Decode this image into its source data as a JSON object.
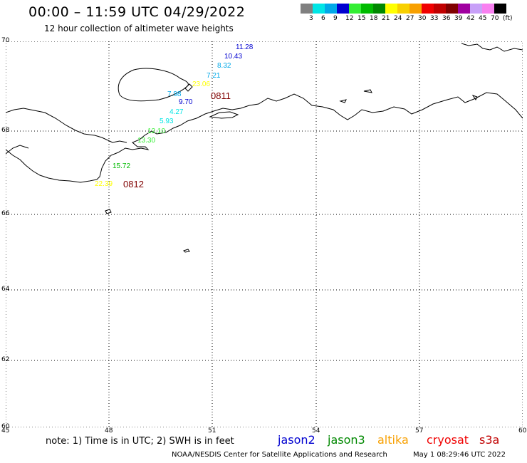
{
  "header": {
    "title": "00:00 – 11:59 UTC 04/29/2022",
    "subtitle": "12 hour collection of altimeter wave heights"
  },
  "scale": {
    "labels": [
      "3",
      "6",
      "9",
      "12",
      "15",
      "18",
      "21",
      "24",
      "27",
      "30",
      "33",
      "36",
      "39",
      "42",
      "45",
      "70",
      "(ft)"
    ],
    "colors": [
      "#808080",
      "#00e5e5",
      "#00a8e8",
      "#0000d0",
      "#33ee33",
      "#00bb00",
      "#008800",
      "#ffff00",
      "#f8d000",
      "#f8a000",
      "#f00000",
      "#c00000",
      "#800000",
      "#a000a0",
      "#c8a0f8",
      "#f880f0",
      "#000000"
    ]
  },
  "map": {
    "lat_labels": [
      "70",
      "68",
      "66",
      "64",
      "62",
      "60"
    ],
    "lon_labels": [
      "45",
      "48",
      "51",
      "54",
      "57",
      "60"
    ]
  },
  "tracks": [
    {
      "label": "0811",
      "color": "#800000",
      "points": [
        {
          "value": "11.28",
          "color": "#0000d0"
        },
        {
          "value": "10.43",
          "color": "#0000d0"
        },
        {
          "value": "8.32",
          "color": "#00a8e8"
        },
        {
          "value": "7.21",
          "color": "#00a8e8"
        },
        {
          "value": "23.06",
          "color": "#ffff00"
        },
        {
          "value": "7.98",
          "color": "#00a8e8"
        },
        {
          "value": "9.70",
          "color": "#0000d0"
        },
        {
          "value": "4.27",
          "color": "#00e5e5"
        },
        {
          "value": "5.93",
          "color": "#00e5e5"
        },
        {
          "value": "12.10",
          "color": "#33ee33"
        },
        {
          "value": "13.30",
          "color": "#33ee33"
        }
      ]
    },
    {
      "label": "0812",
      "color": "#800000",
      "points": [
        {
          "value": "15.72",
          "color": "#00bb00"
        },
        {
          "value": "22.39",
          "color": "#ffff00"
        }
      ]
    }
  ],
  "footer": {
    "note": "note:  1) Time is in UTC;  2) SWH is in feet",
    "credit": "NOAA/NESDIS Center for Satellite Applications and Research",
    "timestamp": "May  1 08:29:46 UTC 2022"
  },
  "legend": [
    {
      "name": "jason2",
      "color": "#0000d0"
    },
    {
      "name": "jason3",
      "color": "#008800"
    },
    {
      "name": "altika",
      "color": "#f8a000"
    },
    {
      "name": "cryosat",
      "color": "#f00000"
    },
    {
      "name": "s3a",
      "color": "#c00000"
    }
  ]
}
